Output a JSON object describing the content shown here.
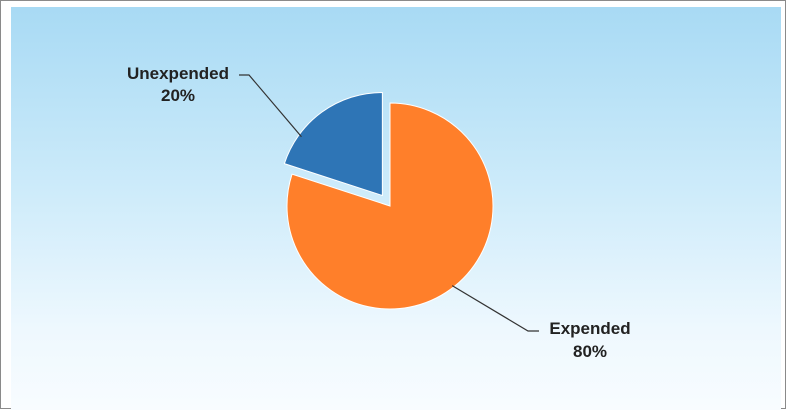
{
  "chart_data": {
    "type": "pie",
    "title": "",
    "slices": [
      {
        "name": "Unexpended",
        "value": 20,
        "percent_label": "20%",
        "color": "#2e75b6",
        "exploded": true
      },
      {
        "name": "Expended",
        "value": 80,
        "percent_label": "80%",
        "color": "#ff7f2a",
        "exploded": false
      }
    ],
    "background_colors": [
      "#a8daf4",
      "#f8fcff"
    ],
    "legend": "none"
  }
}
